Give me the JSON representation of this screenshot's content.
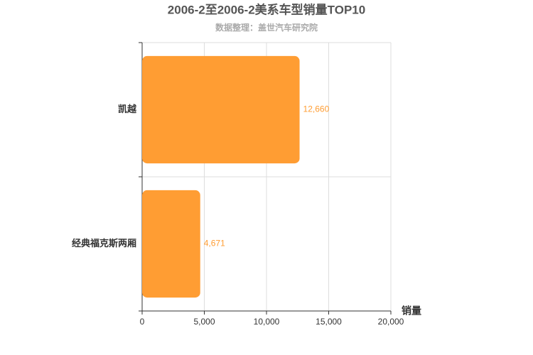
{
  "chart_data": {
    "type": "bar",
    "orientation": "horizontal",
    "title": "2006-2至2006-2美系车型销量TOP10",
    "subtitle": "数据整理：盖世汽车研究院",
    "x_label": "销量",
    "categories": [
      "凯越",
      "经典福克斯两厢"
    ],
    "values": [
      12660,
      4671
    ],
    "value_labels": [
      "12,660",
      "4,671"
    ],
    "color": "#ff9d33",
    "xlim": [
      0,
      20000
    ],
    "xticks": [
      0,
      {
        "value": 5000,
        "label": "5,000"
      },
      {
        "value": 10000,
        "label": "10,000"
      },
      {
        "value": 15000,
        "label": "15,000"
      },
      {
        "value": 20000,
        "label": "20,000"
      }
    ],
    "grid": true
  }
}
